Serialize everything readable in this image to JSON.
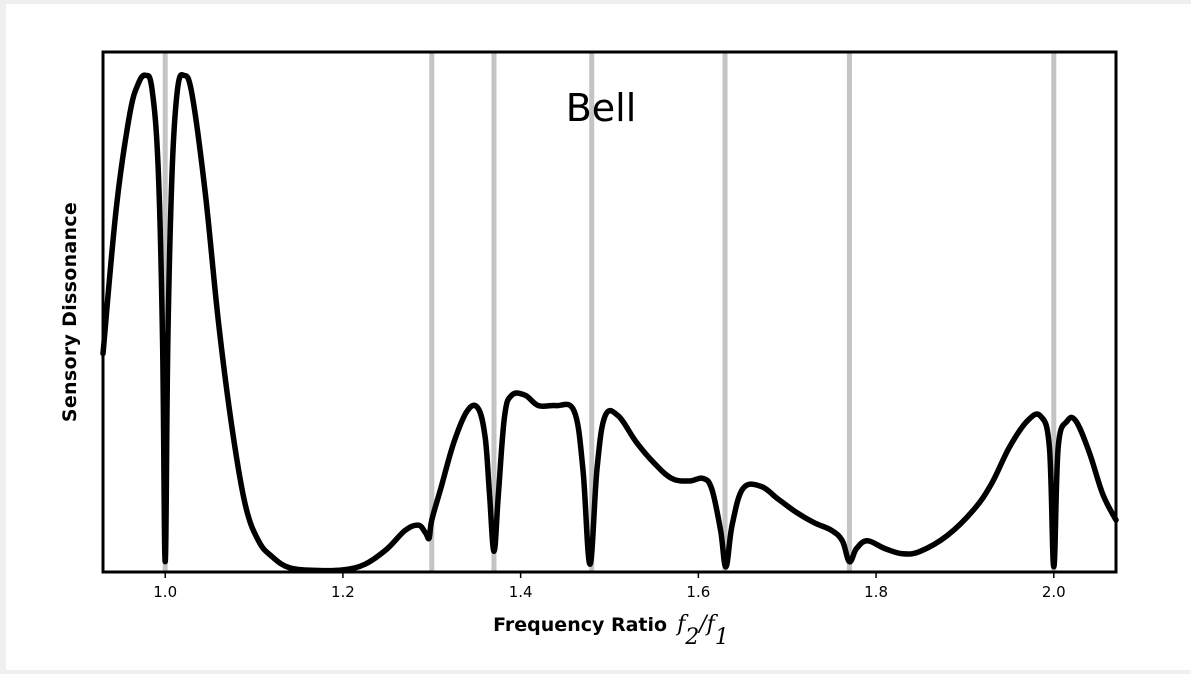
{
  "chart_data": {
    "type": "line",
    "title": "Bell",
    "xlabel": "Frequency Ratio",
    "xlabel_math": {
      "f": "f",
      "sub_num": "2",
      "sub_den": "1"
    },
    "ylabel": "Sensory Dissonance",
    "xlim": [
      0.93,
      2.07
    ],
    "ylim": [
      0,
      1
    ],
    "grid": false,
    "legend": "none",
    "x_ticks": [
      {
        "value": 1.0,
        "label": "1.0"
      },
      {
        "value": 1.2,
        "label": "1.2"
      },
      {
        "value": 1.4,
        "label": "1.4"
      },
      {
        "value": 1.6,
        "label": "1.6"
      },
      {
        "value": 1.8,
        "label": "1.8"
      },
      {
        "value": 2.0,
        "label": "2.0"
      }
    ],
    "reference_lines_x": [
      1.0,
      1.3,
      1.37,
      1.48,
      1.63,
      1.77,
      2.0
    ],
    "colors": {
      "curve": "#000000",
      "reference_lines": "#c4c4c4",
      "frame": "#000000"
    },
    "series": [
      {
        "values": [
          [
            0.93,
            0.42
          ],
          [
            0.945,
            0.7
          ],
          [
            0.96,
            0.88
          ],
          [
            0.97,
            0.94
          ],
          [
            0.978,
            0.955
          ],
          [
            0.985,
            0.93
          ],
          [
            0.992,
            0.78
          ],
          [
            0.997,
            0.45
          ],
          [
            1.0,
            0.02
          ],
          [
            1.003,
            0.45
          ],
          [
            1.008,
            0.78
          ],
          [
            1.014,
            0.93
          ],
          [
            1.021,
            0.955
          ],
          [
            1.03,
            0.92
          ],
          [
            1.045,
            0.73
          ],
          [
            1.06,
            0.48
          ],
          [
            1.075,
            0.28
          ],
          [
            1.09,
            0.13
          ],
          [
            1.105,
            0.06
          ],
          [
            1.12,
            0.03
          ],
          [
            1.14,
            0.008
          ],
          [
            1.17,
            0.003
          ],
          [
            1.2,
            0.004
          ],
          [
            1.225,
            0.015
          ],
          [
            1.25,
            0.045
          ],
          [
            1.27,
            0.08
          ],
          [
            1.285,
            0.09
          ],
          [
            1.293,
            0.075
          ],
          [
            1.297,
            0.065
          ],
          [
            1.3,
            0.1
          ],
          [
            1.31,
            0.16
          ],
          [
            1.325,
            0.25
          ],
          [
            1.34,
            0.31
          ],
          [
            1.352,
            0.315
          ],
          [
            1.36,
            0.26
          ],
          [
            1.365,
            0.15
          ],
          [
            1.37,
            0.04
          ],
          [
            1.375,
            0.15
          ],
          [
            1.382,
            0.3
          ],
          [
            1.39,
            0.34
          ],
          [
            1.405,
            0.34
          ],
          [
            1.42,
            0.32
          ],
          [
            1.44,
            0.32
          ],
          [
            1.46,
            0.31
          ],
          [
            1.47,
            0.2
          ],
          [
            1.478,
            0.015
          ],
          [
            1.486,
            0.2
          ],
          [
            1.495,
            0.3
          ],
          [
            1.51,
            0.3
          ],
          [
            1.53,
            0.25
          ],
          [
            1.55,
            0.21
          ],
          [
            1.57,
            0.18
          ],
          [
            1.59,
            0.175
          ],
          [
            1.605,
            0.18
          ],
          [
            1.615,
            0.16
          ],
          [
            1.625,
            0.08
          ],
          [
            1.631,
            0.01
          ],
          [
            1.638,
            0.09
          ],
          [
            1.65,
            0.16
          ],
          [
            1.67,
            0.165
          ],
          [
            1.69,
            0.14
          ],
          [
            1.71,
            0.115
          ],
          [
            1.73,
            0.095
          ],
          [
            1.75,
            0.08
          ],
          [
            1.762,
            0.06
          ],
          [
            1.77,
            0.02
          ],
          [
            1.778,
            0.045
          ],
          [
            1.79,
            0.06
          ],
          [
            1.81,
            0.045
          ],
          [
            1.83,
            0.035
          ],
          [
            1.85,
            0.04
          ],
          [
            1.88,
            0.07
          ],
          [
            1.91,
            0.12
          ],
          [
            1.93,
            0.17
          ],
          [
            1.95,
            0.24
          ],
          [
            1.97,
            0.29
          ],
          [
            1.985,
            0.3
          ],
          [
            1.995,
            0.24
          ],
          [
            2.0,
            0.01
          ],
          [
            2.005,
            0.24
          ],
          [
            2.015,
            0.29
          ],
          [
            2.025,
            0.29
          ],
          [
            2.04,
            0.23
          ],
          [
            2.055,
            0.15
          ],
          [
            2.07,
            0.1
          ]
        ]
      }
    ]
  }
}
